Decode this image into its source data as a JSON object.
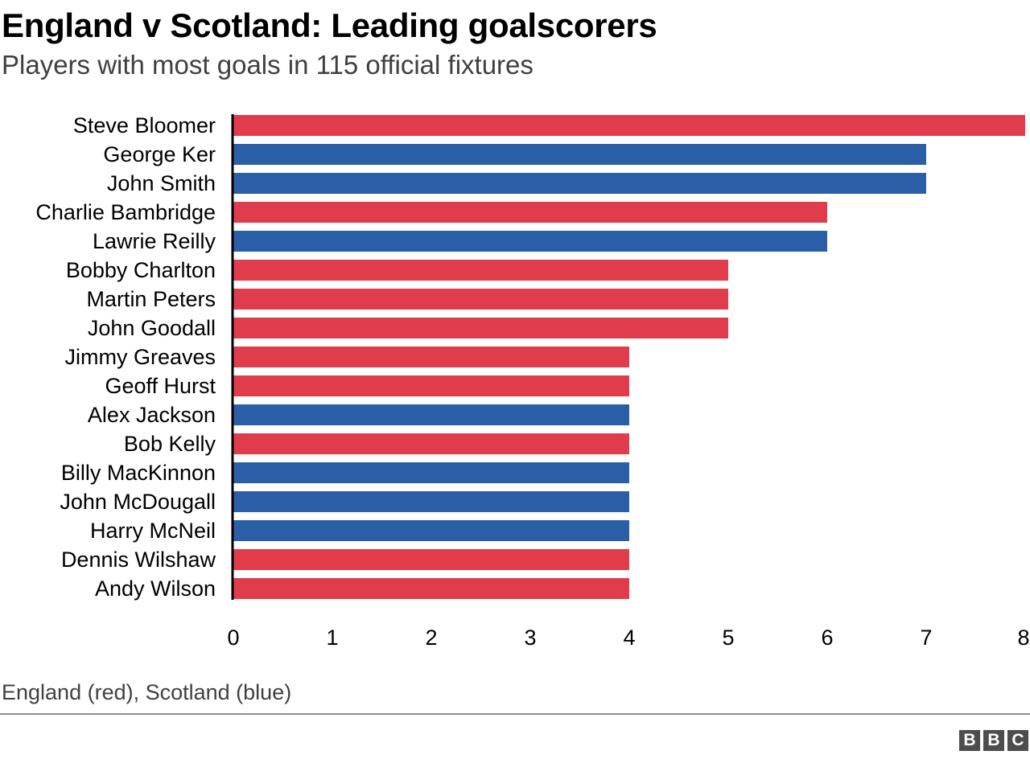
{
  "title": "England v Scotland: Leading goalscorers",
  "subtitle": "Players with most goals in 115 official fixtures",
  "footnote": "England (red), Scotland (blue)",
  "logo": [
    "B",
    "B",
    "C"
  ],
  "colors": {
    "england": "#e03c4b",
    "scotland": "#2a5ea6"
  },
  "chart_data": {
    "type": "bar",
    "orientation": "horizontal",
    "categories": [
      "Steve Bloomer",
      "George Ker",
      "John Smith",
      "Charlie Bambridge",
      "Lawrie Reilly",
      "Bobby Charlton",
      "Martin Peters",
      "John Goodall",
      "Jimmy Greaves",
      "Geoff Hurst",
      "Alex Jackson",
      "Bob Kelly",
      "Billy MacKinnon",
      "John McDougall",
      "Harry McNeil",
      "Dennis Wilshaw",
      "Andy Wilson"
    ],
    "values": [
      8,
      7,
      7,
      6,
      6,
      5,
      5,
      5,
      4,
      4,
      4,
      4,
      4,
      4,
      4,
      4,
      4
    ],
    "team": [
      "england",
      "scotland",
      "scotland",
      "england",
      "scotland",
      "england",
      "england",
      "england",
      "england",
      "england",
      "scotland",
      "england",
      "scotland",
      "scotland",
      "scotland",
      "england",
      "england"
    ],
    "xticks": [
      0,
      1,
      2,
      3,
      4,
      5,
      6,
      7,
      8
    ],
    "xlim": [
      0,
      8
    ],
    "grid": false
  }
}
